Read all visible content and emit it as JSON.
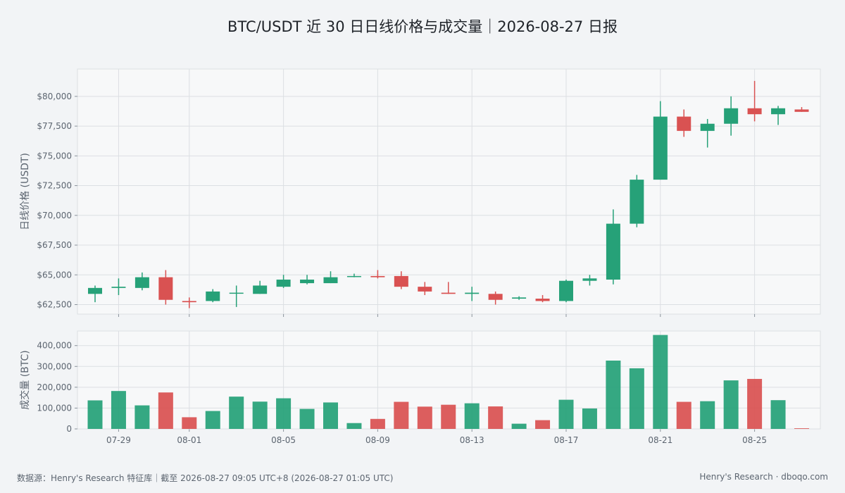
{
  "title": "BTC/USDT 近 30 日日线价格与成交量｜2026-08-27 日报",
  "footer": {
    "source": "数据源：Henry's Research 特征库｜截至 2026-08-27 09:05 UTC+8 (2026-08-27 01:05 UTC)",
    "brand": "Henry's Research · dboqo.com"
  },
  "colors": {
    "up": "#26a178",
    "down": "#d95252",
    "grid": "#dcdfe3",
    "panel": "#f7f8f9"
  },
  "chart_data": [
    {
      "type": "candlestick",
      "ylabel": "日线价格 (USDT)",
      "ylim": [
        61700,
        82300
      ],
      "yticks": [
        62500,
        65000,
        67500,
        70000,
        72500,
        75000,
        77500,
        80000
      ],
      "ytick_labels": [
        "$62,500",
        "$65,000",
        "$67,500",
        "$70,000",
        "$72,500",
        "$75,000",
        "$77,500",
        "$80,000"
      ],
      "x": [
        "07-28",
        "07-29",
        "07-30",
        "07-31",
        "08-01",
        "08-02",
        "08-03",
        "08-04",
        "08-05",
        "08-06",
        "08-07",
        "08-08",
        "08-09",
        "08-10",
        "08-11",
        "08-12",
        "08-13",
        "08-14",
        "08-15",
        "08-16",
        "08-17",
        "08-18",
        "08-19",
        "08-20",
        "08-21",
        "08-22",
        "08-23",
        "08-24",
        "08-25",
        "08-26",
        "08-27"
      ],
      "xtick_labels": [
        "07-29",
        "08-01",
        "08-05",
        "08-09",
        "08-13",
        "08-17",
        "08-21",
        "08-25"
      ],
      "open": [
        63400,
        63900,
        63900,
        64800,
        62800,
        62800,
        63500,
        63400,
        64000,
        64300,
        64300,
        64900,
        64900,
        64900,
        64000,
        63500,
        63400,
        63400,
        63000,
        63000,
        62800,
        64500,
        64600,
        69300,
        73000,
        78300,
        77100,
        77700,
        79000,
        78500,
        78900
      ],
      "high": [
        64100,
        64700,
        65200,
        65400,
        63100,
        63800,
        64100,
        64500,
        65000,
        65000,
        65300,
        65100,
        65400,
        65300,
        64400,
        64400,
        64000,
        63600,
        63200,
        63300,
        64600,
        65000,
        70500,
        73400,
        79600,
        78900,
        78100,
        80000,
        81300,
        79200,
        79100
      ],
      "low": [
        62700,
        63300,
        63700,
        62500,
        62200,
        62700,
        62300,
        63400,
        63900,
        64200,
        64300,
        64800,
        64700,
        63800,
        63300,
        63400,
        62800,
        62500,
        62900,
        62700,
        62700,
        64100,
        64200,
        69000,
        73000,
        76600,
        75700,
        76700,
        77900,
        77600,
        78700
      ],
      "close": [
        63900,
        64000,
        64800,
        62900,
        62700,
        63600,
        63500,
        64100,
        64600,
        64600,
        64800,
        64900,
        64800,
        64000,
        63600,
        63400,
        63500,
        62900,
        63100,
        62800,
        64500,
        64700,
        69300,
        73000,
        78300,
        77100,
        77700,
        79000,
        78500,
        79000,
        78700
      ]
    },
    {
      "type": "bar",
      "ylabel": "成交量 (BTC)",
      "ylim": [
        0,
        470000
      ],
      "yticks": [
        0,
        100000,
        200000,
        300000,
        400000
      ],
      "ytick_labels": [
        "0",
        "100,000",
        "200,000",
        "300,000",
        "400,000"
      ],
      "values": [
        137000,
        182000,
        113000,
        175000,
        56000,
        86000,
        155000,
        131000,
        147000,
        96000,
        127000,
        28000,
        48000,
        130000,
        107000,
        116000,
        123000,
        108000,
        25000,
        42000,
        140000,
        98000,
        328000,
        291000,
        451000,
        130000,
        133000,
        233000,
        240000,
        138000,
        3000
      ]
    }
  ]
}
